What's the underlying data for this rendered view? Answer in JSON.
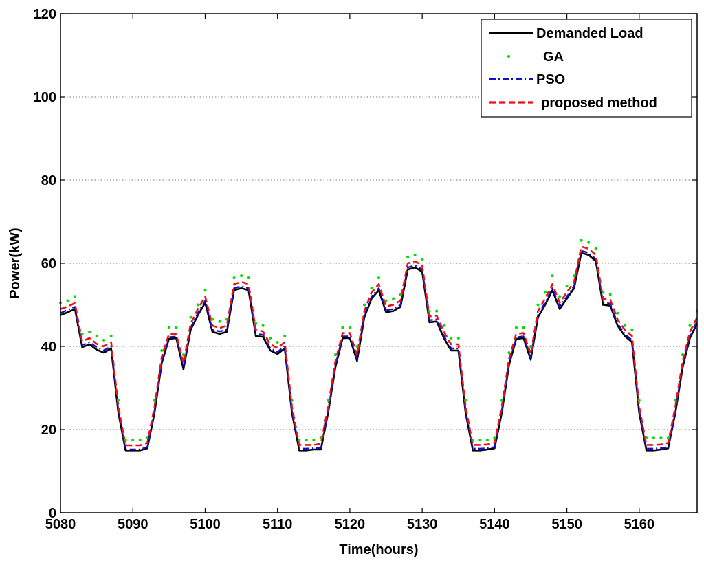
{
  "chart_data": {
    "type": "line",
    "xlabel": "Time(hours)",
    "ylabel": "Power(kW)",
    "xlim": [
      5080,
      5168
    ],
    "ylim": [
      0,
      120
    ],
    "xticks": [
      5080,
      5090,
      5100,
      5110,
      5120,
      5130,
      5140,
      5150,
      5160
    ],
    "yticks": [
      0,
      20,
      40,
      60,
      80,
      100,
      120
    ],
    "grid": "horizontal dotted",
    "legend_position": "top-right",
    "x": [
      5080,
      5081,
      5082,
      5083,
      5084,
      5085,
      5086,
      5087,
      5088,
      5089,
      5090,
      5091,
      5092,
      5093,
      5094,
      5095,
      5096,
      5097,
      5098,
      5099,
      5100,
      5101,
      5102,
      5103,
      5104,
      5105,
      5106,
      5107,
      5108,
      5109,
      5110,
      5111,
      5112,
      5113,
      5114,
      5115,
      5116,
      5117,
      5118,
      5119,
      5120,
      5121,
      5122,
      5123,
      5124,
      5125,
      5126,
      5127,
      5128,
      5129,
      5130,
      5131,
      5132,
      5133,
      5134,
      5135,
      5136,
      5137,
      5138,
      5139,
      5140,
      5141,
      5142,
      5143,
      5144,
      5145,
      5146,
      5147,
      5148,
      5149,
      5150,
      5151,
      5152,
      5153,
      5154,
      5155,
      5156,
      5157,
      5158,
      5159,
      5160,
      5161,
      5162,
      5163,
      5164,
      5165,
      5166,
      5167,
      5168
    ],
    "series": [
      {
        "name": "Demanded Load",
        "style": "solid",
        "color": "#000000",
        "values": [
          47.5,
          48.2,
          49,
          39.8,
          40.5,
          39.2,
          38.5,
          39.5,
          24,
          15,
          15,
          15,
          15.5,
          24,
          36,
          41.8,
          42,
          34.5,
          44,
          47.5,
          50.5,
          43.5,
          43,
          43.5,
          53.5,
          54,
          53.5,
          42.5,
          42.3,
          39,
          38.2,
          39.5,
          24,
          15,
          15,
          15.2,
          15.2,
          24,
          35,
          42,
          42,
          36.5,
          47,
          51.5,
          53.5,
          48.2,
          48.5,
          49.5,
          58.5,
          59,
          58,
          45.8,
          46,
          42,
          39,
          39,
          24,
          15,
          15,
          15.2,
          15.5,
          24,
          35.5,
          41.8,
          42,
          36.8,
          47,
          50,
          53.5,
          49,
          51.5,
          54,
          62.5,
          62,
          60.5,
          50,
          49.8,
          45,
          42.5,
          41,
          24,
          15,
          15,
          15.2,
          15.5,
          24,
          35,
          42,
          45.5
        ]
      },
      {
        "name": "GA",
        "style": "dots",
        "color": "#00dd00",
        "values": [
          50.5,
          51,
          52,
          43,
          43.5,
          42.5,
          41.5,
          42.5,
          27,
          17.5,
          17.5,
          17.5,
          18,
          27,
          39,
          44.5,
          44.5,
          38,
          47,
          50,
          53.5,
          46.5,
          46,
          46.5,
          56.5,
          57,
          56.5,
          45.5,
          45,
          42,
          41,
          42.5,
          27,
          17.5,
          17.5,
          17.5,
          18,
          27,
          38,
          44.5,
          44.5,
          40,
          50,
          54,
          56.5,
          51,
          51.5,
          52.5,
          61.5,
          62,
          61,
          48.5,
          48.5,
          45,
          42,
          42,
          27,
          17.5,
          17.5,
          17.5,
          18,
          27,
          38.5,
          44.5,
          44.5,
          40,
          50,
          53,
          57,
          52,
          54.5,
          57,
          65.5,
          65,
          63.5,
          53,
          52.5,
          48,
          45,
          44,
          27,
          18,
          18,
          18,
          18,
          27,
          38,
          45,
          48.5
        ]
      },
      {
        "name": "PSO",
        "style": "dashdot",
        "color": "#1010cc",
        "values": [
          48,
          48.8,
          49.5,
          40.3,
          41,
          39.8,
          39,
          40,
          24.5,
          15.2,
          15.2,
          15.2,
          15.8,
          24.5,
          36.5,
          42.2,
          42.4,
          35,
          44.5,
          48,
          51,
          44,
          43.6,
          44,
          54,
          54.5,
          54,
          43,
          42.8,
          39.5,
          38.7,
          40,
          24.5,
          15.4,
          15.4,
          15.5,
          15.6,
          24.5,
          35.5,
          42.4,
          42.4,
          37,
          47.5,
          52,
          54,
          48.7,
          49,
          50,
          59,
          59.5,
          58.5,
          46.3,
          46.5,
          42.5,
          39.5,
          39.5,
          24.5,
          15.4,
          15.4,
          15.5,
          15.8,
          24.5,
          36,
          42.2,
          42.4,
          37.3,
          47.5,
          50.5,
          54,
          49.5,
          52,
          54.5,
          63,
          62.5,
          61,
          50.5,
          50.3,
          45.5,
          43,
          41.5,
          24.5,
          15.4,
          15.4,
          15.5,
          15.8,
          24.5,
          35.5,
          42.5,
          46
        ]
      },
      {
        "name": "proposed method",
        "style": "dashed",
        "color": "#ee1111",
        "values": [
          49,
          49.6,
          50.4,
          41.2,
          42,
          40.6,
          40,
          41,
          25.5,
          16.2,
          16.2,
          16.2,
          16.8,
          25.5,
          37.5,
          43,
          43,
          36,
          45.5,
          49,
          52,
          45,
          44.4,
          45,
          55,
          55.5,
          55,
          44,
          43.6,
          40.5,
          39.6,
          41,
          25.5,
          16.3,
          16.3,
          16.3,
          16.6,
          25.5,
          36.5,
          43.2,
          43.2,
          38,
          48.5,
          53,
          55,
          49.6,
          50,
          51,
          60,
          60.5,
          59.5,
          47.2,
          47.4,
          43.5,
          40.5,
          40.5,
          25.5,
          16.3,
          16.3,
          16.4,
          16.8,
          25.5,
          37,
          43,
          43.2,
          38.2,
          48.5,
          51.5,
          55,
          50.5,
          53,
          55.5,
          64,
          63.5,
          62,
          51.5,
          51.2,
          46.5,
          44,
          42.5,
          25.5,
          16.3,
          16.3,
          16.4,
          16.8,
          25.5,
          36.5,
          43.5,
          47
        ]
      }
    ]
  }
}
